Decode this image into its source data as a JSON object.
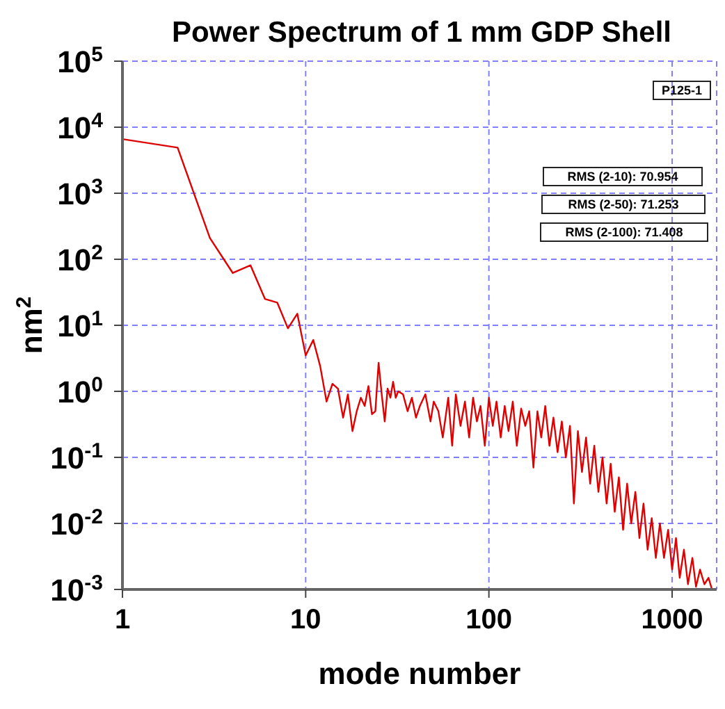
{
  "chart_data": {
    "type": "line",
    "title": "Power Spectrum of 1 mm GDP Shell",
    "xlabel": "mode number",
    "ylabel": "nm$^{2}$",
    "log": "xy",
    "grid": true,
    "marker": "none",
    "line_style": "solid",
    "xlim": [
      1,
      1750
    ],
    "xticks": [
      1,
      10,
      100,
      1000
    ],
    "ylim": [
      0.001,
      100000
    ],
    "yticks": [
      {
        "value": 0.001,
        "label": "10$^{-3}$"
      },
      {
        "value": 0.01,
        "label": "10$^{-2}$"
      },
      {
        "value": 0.1,
        "label": "10$^{-1}$"
      },
      {
        "value": 1,
        "label": "10$^{0}$"
      },
      {
        "value": 10,
        "label": "10$^{1}$"
      },
      {
        "value": 100,
        "label": "10$^{2}$"
      },
      {
        "value": 1000,
        "label": "10$^{3}$"
      },
      {
        "value": 10000,
        "label": "10$^{4}$"
      },
      {
        "value": 100000,
        "label": "10$^{5}$"
      }
    ],
    "annotations": [
      "P125-1",
      "RMS (2-10): 70.954",
      "RMS (2-50): 71.253",
      "RMS (2-100): 71.408"
    ],
    "series": [
      {
        "color": "#e00000",
        "x": [
          1,
          2,
          3,
          4,
          5,
          6,
          7,
          8,
          9,
          10,
          11,
          12,
          13,
          14,
          15,
          16,
          17,
          18,
          19,
          20,
          21,
          22,
          23,
          24,
          25,
          26,
          27,
          28,
          29,
          30,
          31,
          32,
          34,
          36,
          38,
          40,
          42,
          45,
          48,
          50,
          53,
          56,
          60,
          63,
          66,
          70,
          74,
          78,
          82,
          86,
          90,
          95,
          100,
          105,
          110,
          116,
          122,
          128,
          135,
          142,
          150,
          158,
          166,
          175,
          184,
          193,
          203,
          214,
          225,
          237,
          250,
          263,
          277,
          291,
          306,
          322,
          339,
          357,
          376,
          396,
          417,
          439,
          462,
          486,
          512,
          540,
          568,
          598,
          630,
          663,
          698,
          735,
          774,
          815,
          858,
          903,
          951,
          1000,
          1050,
          1100,
          1160,
          1220,
          1290,
          1350,
          1420,
          1500,
          1580,
          1650
        ],
        "values": [
          6600,
          4900,
          210,
          62,
          81,
          25,
          22,
          9,
          15,
          3.5,
          6,
          2.4,
          0.7,
          1.3,
          1.1,
          0.4,
          0.9,
          0.25,
          0.5,
          0.8,
          0.6,
          1.2,
          0.45,
          0.5,
          2.7,
          0.9,
          0.35,
          1.1,
          0.8,
          1.4,
          0.8,
          1.0,
          0.9,
          0.5,
          0.8,
          0.4,
          0.6,
          0.9,
          0.35,
          0.7,
          0.5,
          0.2,
          0.8,
          0.15,
          0.9,
          0.3,
          0.7,
          0.2,
          0.8,
          0.35,
          0.6,
          0.15,
          0.8,
          0.3,
          0.7,
          0.2,
          0.6,
          0.25,
          0.7,
          0.15,
          0.55,
          0.3,
          0.5,
          0.07,
          0.5,
          0.2,
          0.6,
          0.15,
          0.4,
          0.12,
          0.35,
          0.1,
          0.3,
          0.02,
          0.25,
          0.06,
          0.2,
          0.04,
          0.15,
          0.03,
          0.1,
          0.02,
          0.08,
          0.015,
          0.05,
          0.008,
          0.04,
          0.01,
          0.03,
          0.006,
          0.02,
          0.004,
          0.012,
          0.003,
          0.01,
          0.003,
          0.008,
          0.002,
          0.006,
          0.0015,
          0.004,
          0.0012,
          0.003,
          0.0011,
          0.002,
          0.0012,
          0.0015,
          0.001
        ]
      }
    ]
  }
}
